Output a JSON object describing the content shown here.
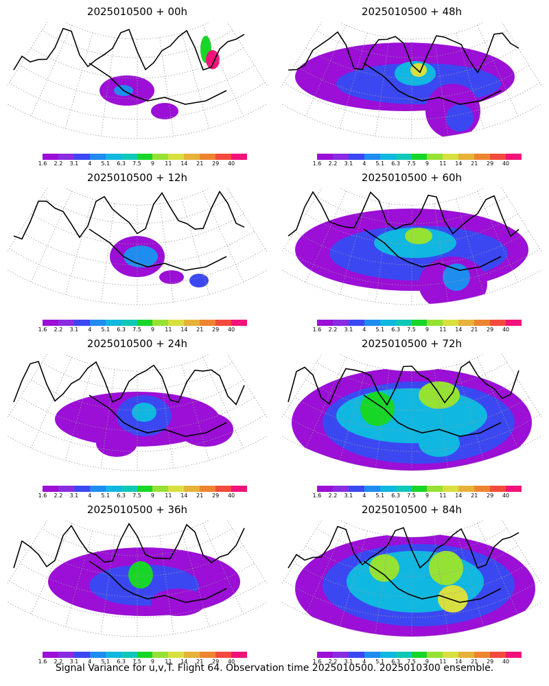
{
  "panels": [
    {
      "title": "2025010500 + 00h",
      "lead_hours": 0
    },
    {
      "title": "2025010500 + 48h",
      "lead_hours": 48
    },
    {
      "title": "2025010500 + 12h",
      "lead_hours": 12
    },
    {
      "title": "2025010500 + 60h",
      "lead_hours": 60
    },
    {
      "title": "2025010500 + 24h",
      "lead_hours": 24
    },
    {
      "title": "2025010500 + 72h",
      "lead_hours": 72
    },
    {
      "title": "2025010500 + 36h",
      "lead_hours": 36
    },
    {
      "title": "2025010500 + 84h",
      "lead_hours": 84
    }
  ],
  "colorbar": {
    "labels": [
      "1.6",
      "2.2",
      "3.1",
      "4",
      "5.1",
      "6.3",
      "7.5",
      "9",
      "11",
      "14",
      "21",
      "29",
      "40"
    ],
    "colors": [
      "#9b0fd6",
      "#8a2ce0",
      "#3b48f2",
      "#1f8cf0",
      "#10b7e0",
      "#10c8b8",
      "#18d628",
      "#96e234",
      "#d8e040",
      "#e6b238",
      "#ee8430",
      "#f24a3c",
      "#f2127a"
    ]
  },
  "footer": "Signal Variance for u,v,T. Flight 64. Observation time 2025010500. 2025010300 ensemble."
}
